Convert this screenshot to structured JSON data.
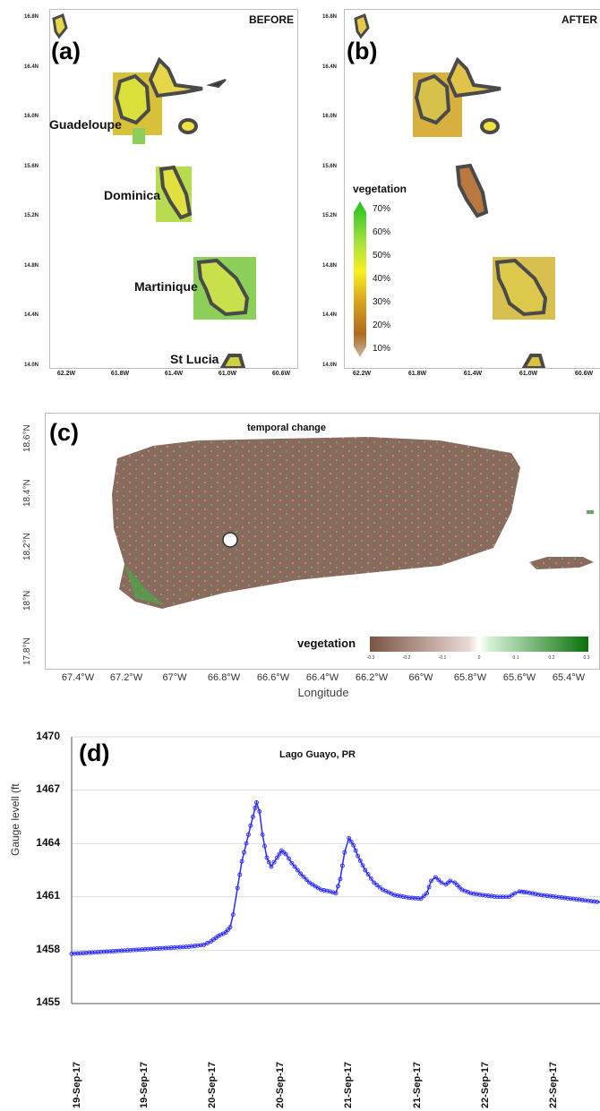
{
  "panels": {
    "a": {
      "letter": "(a)",
      "title": "BEFORE",
      "yticks": [
        "16.8N",
        "16.4N",
        "16.0N",
        "15.6N",
        "15.2N",
        "14.8N",
        "14.4N",
        "14.0N"
      ],
      "xticks": [
        "62.2W",
        "61.8W",
        "61.4W",
        "61.0W",
        "60.6W"
      ],
      "islands": [
        "Guadeloupe",
        "Dominica",
        "Martinique",
        "St Lucia"
      ]
    },
    "b": {
      "letter": "(b)",
      "title": "AFTER",
      "yticks": [
        "16.8N",
        "16.4N",
        "16.0N",
        "15.6N",
        "15.2N",
        "14.8N",
        "14.4N",
        "14.0N"
      ],
      "xticks": [
        "62.2W",
        "61.8W",
        "61.4W",
        "61.0W",
        "60.6W"
      ],
      "legend": {
        "title": "vegetation",
        "labels": [
          "70%",
          "60%",
          "50%",
          "40%",
          "30%",
          "20%",
          "10%"
        ]
      }
    },
    "c": {
      "letter": "(c)",
      "title": "temporal change",
      "yticks": [
        "18.6°N",
        "18.4°N",
        "18.2°N",
        "18°N",
        "17.8°N"
      ],
      "xticks": [
        "67.4°W",
        "67.2°W",
        "67°W",
        "66.8°W",
        "66.6°W",
        "66.4°W",
        "66.2°W",
        "66°W",
        "65.8°W",
        "65.6°W",
        "65.4°W"
      ],
      "xlabel": "Longitude",
      "legend": {
        "title": "vegetation",
        "ticks": [
          "-0.3",
          "-0.2",
          "-0.1",
          "0",
          "0.1",
          "0.2",
          "0.3"
        ]
      }
    },
    "d": {
      "letter": "(d)",
      "title": "Lago Guayo, PR",
      "ylabel": "Gauge levell (ft",
      "yticks": [
        "1470",
        "1467",
        "1464",
        "1461",
        "1458",
        "1455"
      ],
      "xticks": [
        "19-Sep-17",
        "19-Sep-17",
        "20-Sep-17",
        "20-Sep-17",
        "21-Sep-17",
        "21-Sep-17",
        "22-Sep-17",
        "22-Sep-17"
      ]
    }
  },
  "colors": {
    "series": "#2b2bff",
    "brown": "#7a5a4a",
    "green": "#2a9a2a",
    "outline": "#4a4a4a"
  },
  "chart_data": {
    "type": "line",
    "title": "Lago Guayo, PR",
    "ylabel": "Gauge levell (ft",
    "ylim": [
      1455,
      1470
    ],
    "x_unit": "days since 19-Sep-17 00:00",
    "xlim": [
      0,
      3.6
    ],
    "series": [
      {
        "name": "Gauge level",
        "points": [
          [
            0.0,
            1457.8
          ],
          [
            0.2,
            1457.9
          ],
          [
            0.4,
            1458.0
          ],
          [
            0.6,
            1458.1
          ],
          [
            0.8,
            1458.2
          ],
          [
            0.9,
            1458.3
          ],
          [
            0.95,
            1458.5
          ],
          [
            1.0,
            1458.8
          ],
          [
            1.05,
            1459.0
          ],
          [
            1.08,
            1459.3
          ],
          [
            1.1,
            1460.0
          ],
          [
            1.13,
            1461.5
          ],
          [
            1.16,
            1463.0
          ],
          [
            1.19,
            1464.0
          ],
          [
            1.22,
            1465.0
          ],
          [
            1.25,
            1466.0
          ],
          [
            1.26,
            1466.3
          ],
          [
            1.28,
            1465.8
          ],
          [
            1.3,
            1464.5
          ],
          [
            1.33,
            1463.2
          ],
          [
            1.36,
            1462.7
          ],
          [
            1.4,
            1463.2
          ],
          [
            1.43,
            1463.6
          ],
          [
            1.46,
            1463.4
          ],
          [
            1.5,
            1462.9
          ],
          [
            1.56,
            1462.3
          ],
          [
            1.62,
            1461.8
          ],
          [
            1.7,
            1461.4
          ],
          [
            1.76,
            1461.3
          ],
          [
            1.8,
            1461.2
          ],
          [
            1.83,
            1462.0
          ],
          [
            1.86,
            1463.5
          ],
          [
            1.89,
            1464.3
          ],
          [
            1.92,
            1463.9
          ],
          [
            1.95,
            1463.3
          ],
          [
            2.0,
            1462.5
          ],
          [
            2.06,
            1461.8
          ],
          [
            2.12,
            1461.4
          ],
          [
            2.2,
            1461.1
          ],
          [
            2.3,
            1460.95
          ],
          [
            2.38,
            1460.9
          ],
          [
            2.42,
            1461.2
          ],
          [
            2.45,
            1461.9
          ],
          [
            2.48,
            1462.1
          ],
          [
            2.52,
            1461.8
          ],
          [
            2.55,
            1461.7
          ],
          [
            2.58,
            1461.9
          ],
          [
            2.61,
            1461.8
          ],
          [
            2.66,
            1461.4
          ],
          [
            2.72,
            1461.2
          ],
          [
            2.8,
            1461.1
          ],
          [
            2.9,
            1461.0
          ],
          [
            2.98,
            1461.0
          ],
          [
            3.02,
            1461.2
          ],
          [
            3.05,
            1461.3
          ],
          [
            3.1,
            1461.25
          ],
          [
            3.2,
            1461.1
          ],
          [
            3.3,
            1461.0
          ],
          [
            3.4,
            1460.9
          ],
          [
            3.5,
            1460.8
          ],
          [
            3.6,
            1460.7
          ]
        ]
      }
    ]
  }
}
